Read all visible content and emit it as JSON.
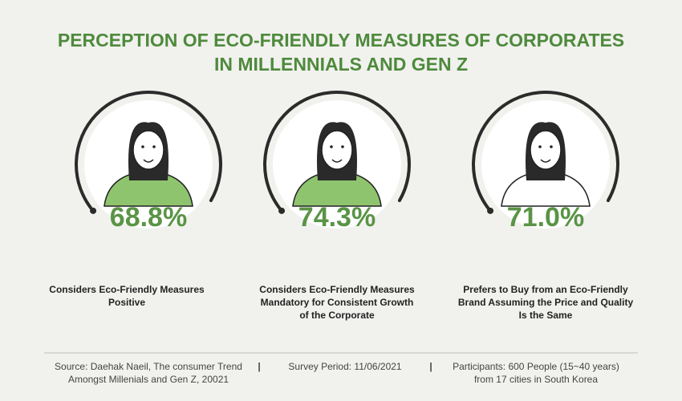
{
  "title": {
    "lines": [
      "PERCEPTION OF ECO-FRIENDLY MEASURES OF CORPORATES",
      "IN MILLENNIALS AND GEN Z"
    ]
  },
  "items": [
    {
      "value": "68.8%",
      "caption": [
        "Considers Eco-Friendly Measures",
        "Positive"
      ]
    },
    {
      "value": "74.3%",
      "caption": [
        "Considers Eco-Friendly Measures",
        "Mandatory for Consistent Growth",
        "of the Corporate"
      ]
    },
    {
      "value": "71.0%",
      "caption": [
        "Prefers to Buy from an Eco-Friendly",
        "Brand Assuming the Price and Quality",
        "Is the Same"
      ]
    }
  ],
  "footer": {
    "source": [
      "Source: Daehak Naeil, The consumer Trend",
      "Amongst Millenials and Gen Z, 20021"
    ],
    "period": [
      "Survey Period: 11/06/2021"
    ],
    "participants": [
      "Participants: 600 People (15~40 years)",
      "from 17 cities in South Korea"
    ],
    "separators": [
      "|",
      "|"
    ]
  }
}
